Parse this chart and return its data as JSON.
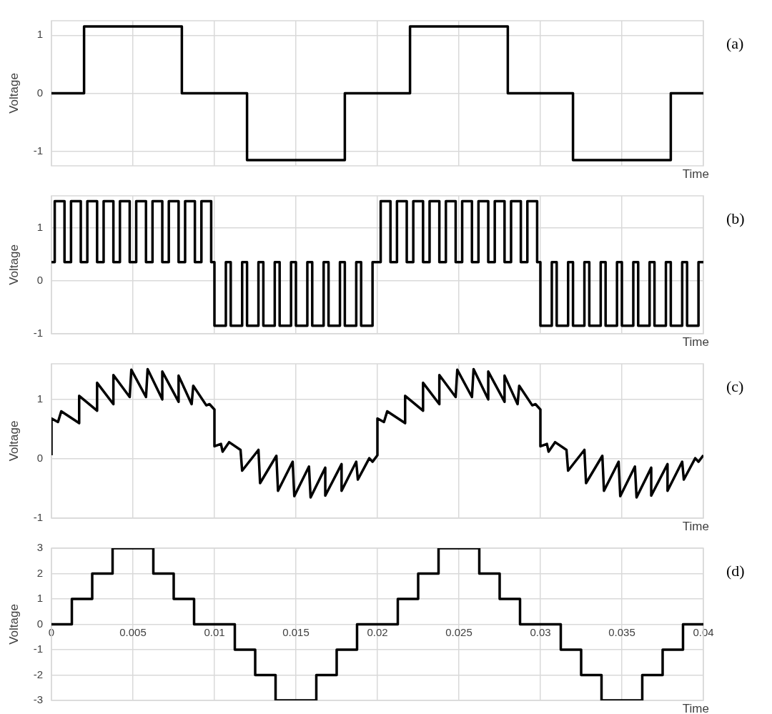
{
  "chart_data": [
    {
      "type": "step",
      "ylabel": "Voltage",
      "xlabel": "Time",
      "annotations": [
        "(a)"
      ],
      "xlim": [
        0,
        0.04
      ],
      "xticks": [
        0,
        0.005,
        0.01,
        0.015,
        0.02,
        0.025,
        0.03,
        0.035,
        0.04
      ],
      "ylim": [
        -1.25,
        1.25
      ],
      "yticks": [
        -1,
        0,
        1
      ],
      "tick_labels": "y",
      "grid": true,
      "x": [
        0,
        0.002,
        0.008,
        0.012,
        0.018,
        0.022,
        0.028,
        0.032,
        0.038,
        0.04
      ],
      "series": [
        {
          "color": "#000000",
          "values": [
            0,
            1.15,
            0,
            -1.15,
            0,
            1.15,
            0,
            -1.15,
            0,
            0
          ]
        }
      ]
    },
    {
      "type": "step",
      "ylabel": "Voltage",
      "xlabel": "Time",
      "annotations": [
        "(b)"
      ],
      "xlim": [
        0,
        0.04
      ],
      "xticks": [
        0,
        0.005,
        0.01,
        0.015,
        0.02,
        0.025,
        0.03,
        0.035,
        0.04
      ],
      "ylim": [
        -1,
        1.6
      ],
      "yticks": [
        -1,
        0,
        1
      ],
      "tick_labels": "y",
      "grid": true,
      "x": [
        0,
        0.0002,
        0.0008,
        0.0012,
        0.0018,
        0.0022,
        0.0028,
        0.0032,
        0.0038,
        0.0042,
        0.0048,
        0.0052,
        0.0058,
        0.0062,
        0.0068,
        0.0072,
        0.0078,
        0.0082,
        0.0088,
        0.0092,
        0.0098,
        0.01,
        0.0107,
        0.011,
        0.0117,
        0.012,
        0.0127,
        0.013,
        0.0137,
        0.014,
        0.0147,
        0.015,
        0.0157,
        0.016,
        0.0167,
        0.017,
        0.0177,
        0.018,
        0.0187,
        0.019,
        0.0197,
        0.0202,
        0.0208,
        0.0212,
        0.0218,
        0.0222,
        0.0228,
        0.0232,
        0.0238,
        0.0242,
        0.0248,
        0.0252,
        0.0258,
        0.0262,
        0.0268,
        0.0272,
        0.0278,
        0.0282,
        0.0288,
        0.0292,
        0.0298,
        0.03,
        0.0307,
        0.031,
        0.0317,
        0.032,
        0.0327,
        0.033,
        0.0337,
        0.034,
        0.0347,
        0.035,
        0.0357,
        0.036,
        0.0367,
        0.037,
        0.0377,
        0.038,
        0.0387,
        0.039,
        0.0397,
        0.04
      ],
      "series": [
        {
          "color": "#000000",
          "values": [
            0.35,
            1.5,
            0.35,
            1.5,
            0.35,
            1.5,
            0.35,
            1.5,
            0.35,
            1.5,
            0.35,
            1.5,
            0.35,
            1.5,
            0.35,
            1.5,
            0.35,
            1.5,
            0.35,
            1.5,
            0.35,
            -0.85,
            0.35,
            -0.85,
            0.35,
            -0.85,
            0.35,
            -0.85,
            0.35,
            -0.85,
            0.35,
            -0.85,
            0.35,
            -0.85,
            0.35,
            -0.85,
            0.35,
            -0.85,
            0.35,
            -0.85,
            0.35,
            1.5,
            0.35,
            1.5,
            0.35,
            1.5,
            0.35,
            1.5,
            0.35,
            1.5,
            0.35,
            1.5,
            0.35,
            1.5,
            0.35,
            1.5,
            0.35,
            1.5,
            0.35,
            1.5,
            0.35,
            -0.85,
            0.35,
            -0.85,
            0.35,
            -0.85,
            0.35,
            -0.85,
            0.35,
            -0.85,
            0.35,
            -0.85,
            0.35,
            -0.85,
            0.35,
            -0.85,
            0.35,
            -0.85,
            0.35,
            -0.85,
            0.35,
            0.35
          ]
        }
      ]
    },
    {
      "type": "line",
      "ylabel": "Voltage",
      "xlabel": "Time",
      "annotations": [
        "(c)"
      ],
      "xlim": [
        0,
        0.04
      ],
      "xticks": [
        0,
        0.005,
        0.01,
        0.015,
        0.02,
        0.025,
        0.03,
        0.035,
        0.04
      ],
      "ylim": [
        -1,
        1.6
      ],
      "yticks": [
        -1,
        0,
        1
      ],
      "tick_labels": "y",
      "grid": true,
      "x": [
        0,
        0,
        0.0004,
        0.0006,
        0.0017,
        0.0017,
        0.0028,
        0.0028,
        0.0038,
        0.0038,
        0.0048,
        0.0049,
        0.0058,
        0.0059,
        0.0068,
        0.0068,
        0.0078,
        0.0078,
        0.0086,
        0.0087,
        0.0095,
        0.0097,
        0.01,
        0.01,
        0.0104,
        0.0105,
        0.0109,
        0.0116,
        0.0117,
        0.0127,
        0.0128,
        0.0138,
        0.0139,
        0.0148,
        0.0149,
        0.0158,
        0.0159,
        0.0168,
        0.0168,
        0.0178,
        0.0178,
        0.0187,
        0.0188,
        0.0195,
        0.0197,
        0.02,
        0.02,
        0.0204,
        0.0206,
        0.0217,
        0.0217,
        0.0228,
        0.0228,
        0.0238,
        0.0238,
        0.0248,
        0.0249,
        0.0258,
        0.0259,
        0.0268,
        0.0268,
        0.0278,
        0.0278,
        0.0286,
        0.0287,
        0.0295,
        0.0297,
        0.03,
        0.03,
        0.0304,
        0.0305,
        0.0309,
        0.0316,
        0.0317,
        0.0327,
        0.0328,
        0.0338,
        0.0339,
        0.0348,
        0.0349,
        0.0358,
        0.0359,
        0.0368,
        0.0368,
        0.0378,
        0.0378,
        0.0387,
        0.0388,
        0.0395,
        0.0397,
        0.04
      ],
      "series": [
        {
          "color": "#000000",
          "values": [
            0.06,
            0.68,
            0.62,
            0.8,
            0.6,
            1.06,
            0.81,
            1.28,
            0.92,
            1.41,
            1.04,
            1.5,
            1.04,
            1.51,
            1.0,
            1.47,
            0.96,
            1.4,
            0.92,
            1.23,
            0.9,
            0.92,
            0.83,
            0.21,
            0.25,
            0.12,
            0.28,
            0.15,
            -0.2,
            0.15,
            -0.41,
            0.05,
            -0.54,
            -0.05,
            -0.63,
            -0.13,
            -0.65,
            -0.15,
            -0.62,
            -0.09,
            -0.54,
            -0.05,
            -0.35,
            0.01,
            -0.05,
            0.06,
            0.68,
            0.62,
            0.8,
            0.6,
            1.06,
            0.81,
            1.28,
            0.92,
            1.41,
            1.04,
            1.5,
            1.04,
            1.51,
            1.0,
            1.47,
            0.96,
            1.4,
            0.92,
            1.23,
            0.9,
            0.92,
            0.83,
            0.21,
            0.25,
            0.12,
            0.28,
            0.15,
            -0.2,
            0.15,
            -0.41,
            0.05,
            -0.54,
            -0.05,
            -0.63,
            -0.13,
            -0.65,
            -0.15,
            -0.62,
            -0.09,
            -0.54,
            -0.05,
            -0.35,
            0.01,
            -0.05,
            0.06
          ]
        }
      ]
    },
    {
      "type": "step",
      "ylabel": "Voltage",
      "xlabel": "Time",
      "annotations": [
        "(d)"
      ],
      "xlim": [
        0,
        0.04
      ],
      "xticks": [
        0,
        0.005,
        0.01,
        0.015,
        0.02,
        0.025,
        0.03,
        0.035,
        0.04
      ],
      "ylim": [
        -3,
        3
      ],
      "yticks": [
        -3,
        -2,
        -1,
        0,
        1,
        2,
        3
      ],
      "grid": true,
      "x": [
        0,
        0.00125,
        0.0025,
        0.00375,
        0.00625,
        0.0075,
        0.00875,
        0.01125,
        0.0125,
        0.01375,
        0.01625,
        0.0175,
        0.01875,
        0.02125,
        0.0225,
        0.02375,
        0.02625,
        0.0275,
        0.02875,
        0.03125,
        0.0325,
        0.03375,
        0.03625,
        0.0375,
        0.03875,
        0.04
      ],
      "series": [
        {
          "color": "#000000",
          "values": [
            0,
            1,
            2,
            3,
            2,
            1,
            0,
            -1,
            -2,
            -3,
            -2,
            -1,
            0,
            1,
            2,
            3,
            2,
            1,
            0,
            -1,
            -2,
            -3,
            -2,
            -1,
            0,
            0
          ]
        }
      ]
    }
  ]
}
